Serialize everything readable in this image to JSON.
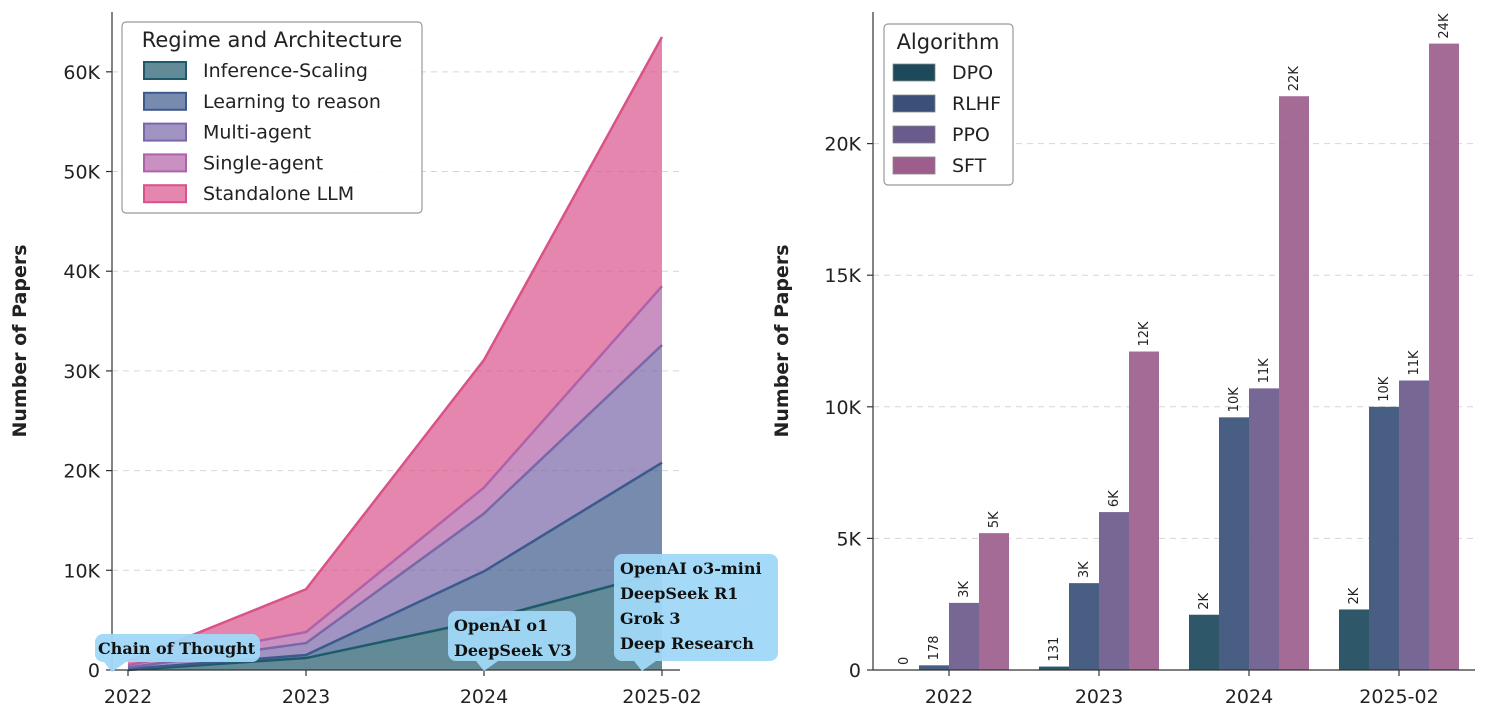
{
  "chart_data": [
    {
      "type": "area",
      "ylabel": "Number of Papers",
      "categories": [
        "2022",
        "2023",
        "2024",
        "2025-02"
      ],
      "yticks": [
        0,
        10000,
        20000,
        30000,
        40000,
        50000,
        60000
      ],
      "ytick_labels": [
        "0",
        "10K",
        "20K",
        "30K",
        "40K",
        "50K",
        "60K"
      ],
      "ylim": [
        0,
        66000
      ],
      "stacked": true,
      "grid": "y-dashed",
      "legend": {
        "title": "Regime and Architecture",
        "placement": "top-left"
      },
      "series": [
        {
          "name": "Inference-Scaling",
          "color": "#1f5a6b",
          "values": [
            0,
            1200,
            5000,
            9800
          ]
        },
        {
          "name": "Learning to reason",
          "color": "#3d5a8c",
          "values": [
            100,
            300,
            4900,
            11000
          ]
        },
        {
          "name": "Multi-agent",
          "color": "#7a67a8",
          "values": [
            150,
            1200,
            5800,
            11800
          ]
        },
        {
          "name": "Single-agent",
          "color": "#b062a8",
          "values": [
            250,
            1100,
            2600,
            5900
          ]
        },
        {
          "name": "Standalone LLM",
          "color": "#d9538a",
          "values": [
            400,
            4300,
            12800,
            25000
          ]
        }
      ],
      "annotations": [
        {
          "x": "2022",
          "lines": [
            "Chain of Thought"
          ]
        },
        {
          "x": "2024",
          "lines": [
            "OpenAI o1",
            "DeepSeek V3"
          ]
        },
        {
          "x": "2025-02",
          "lines": [
            "OpenAI o3-mini",
            "DeepSeek R1",
            "Grok 3",
            "Deep Research"
          ]
        }
      ],
      "annotation_color": "#9fd8f7"
    },
    {
      "type": "bar",
      "ylabel": "Number of Papers",
      "categories": [
        "2022",
        "2023",
        "2024",
        "2025-02"
      ],
      "yticks": [
        0,
        5000,
        10000,
        15000,
        20000
      ],
      "ytick_labels": [
        "0",
        "5K",
        "10K",
        "15K",
        "20K"
      ],
      "ylim": [
        0,
        25000
      ],
      "grid": "y-dashed",
      "legend": {
        "title": "Algorithm",
        "placement": "top-left"
      },
      "series": [
        {
          "name": "DPO",
          "color": "#1c4a5c",
          "values": [
            0,
            131,
            2100,
            2300
          ],
          "labels": [
            "0",
            "131",
            "2K",
            "2K"
          ]
        },
        {
          "name": "RLHF",
          "color": "#3a5078",
          "values": [
            178,
            3300,
            9600,
            10000
          ],
          "labels": [
            "178",
            "3K",
            "10K",
            "10K"
          ]
        },
        {
          "name": "PPO",
          "color": "#6b5a8c",
          "values": [
            2550,
            6000,
            10700,
            11000
          ],
          "labels": [
            "3K",
            "6K",
            "11K",
            "11K"
          ]
        },
        {
          "name": "SFT",
          "color": "#9d5e8e",
          "values": [
            5200,
            12100,
            21800,
            23800
          ],
          "labels": [
            "5K",
            "12K",
            "22K",
            "24K"
          ]
        }
      ]
    }
  ]
}
